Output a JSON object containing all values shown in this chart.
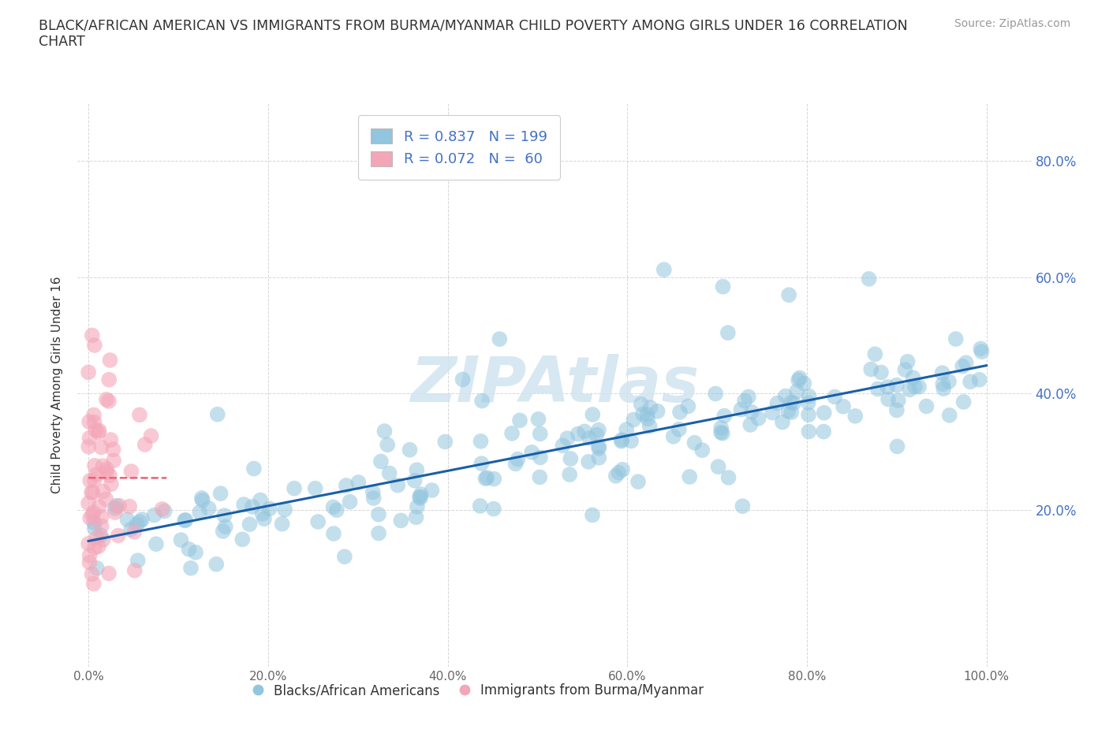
{
  "title": "BLACK/AFRICAN AMERICAN VS IMMIGRANTS FROM BURMA/MYANMAR CHILD POVERTY AMONG GIRLS UNDER 16 CORRELATION\nCHART",
  "source_text": "Source: ZipAtlas.com",
  "ylabel": "Child Poverty Among Girls Under 16",
  "xtick_labels": [
    "0.0%",
    "20.0%",
    "40.0%",
    "60.0%",
    "80.0%",
    "100.0%"
  ],
  "xtick_vals": [
    0.0,
    0.2,
    0.4,
    0.6,
    0.8,
    1.0
  ],
  "ytick_labels": [
    "20.0%",
    "40.0%",
    "60.0%",
    "80.0%"
  ],
  "ytick_vals": [
    0.2,
    0.4,
    0.6,
    0.8
  ],
  "blue_color": "#92c5de",
  "pink_color": "#f4a6b8",
  "blue_line_color": "#1a5fa8",
  "pink_line_color": "#e8637a",
  "R_blue": 0.837,
  "N_blue": 199,
  "R_pink": 0.072,
  "N_pink": 60,
  "legend_text_color": "#4472c4",
  "watermark_color": "#d0e4f0",
  "grid_color": "#cccccc",
  "background_color": "#ffffff",
  "right_tick_color": "#4472c4",
  "seed_blue": 1234,
  "seed_pink": 5678
}
